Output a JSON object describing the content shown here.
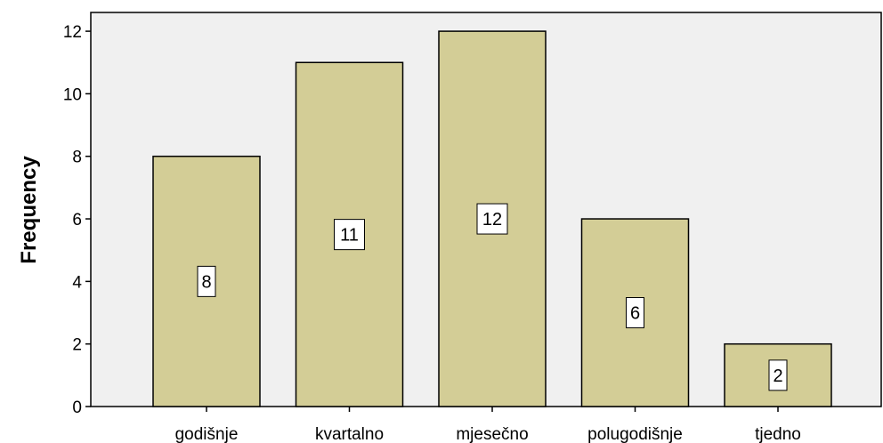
{
  "chart_data": {
    "type": "bar",
    "title": "",
    "xlabel": "",
    "ylabel": "Frequency",
    "categories": [
      "godišnje",
      "kvartalno",
      "mjesečno",
      "polugodišnje",
      "tjedno"
    ],
    "values": [
      8,
      11,
      12,
      6,
      2
    ],
    "value_labels": [
      "8",
      "11",
      "12",
      "6",
      "2"
    ],
    "ylim": [
      0,
      12.6
    ],
    "yticks": [
      "0",
      "2",
      "4",
      "6",
      "8",
      "10",
      "12"
    ],
    "grid": false,
    "legend": "none",
    "colors": {
      "bar_fill": "#d3cd96",
      "bar_stroke": "#000000",
      "plot_background": "#f0f0f0"
    }
  }
}
